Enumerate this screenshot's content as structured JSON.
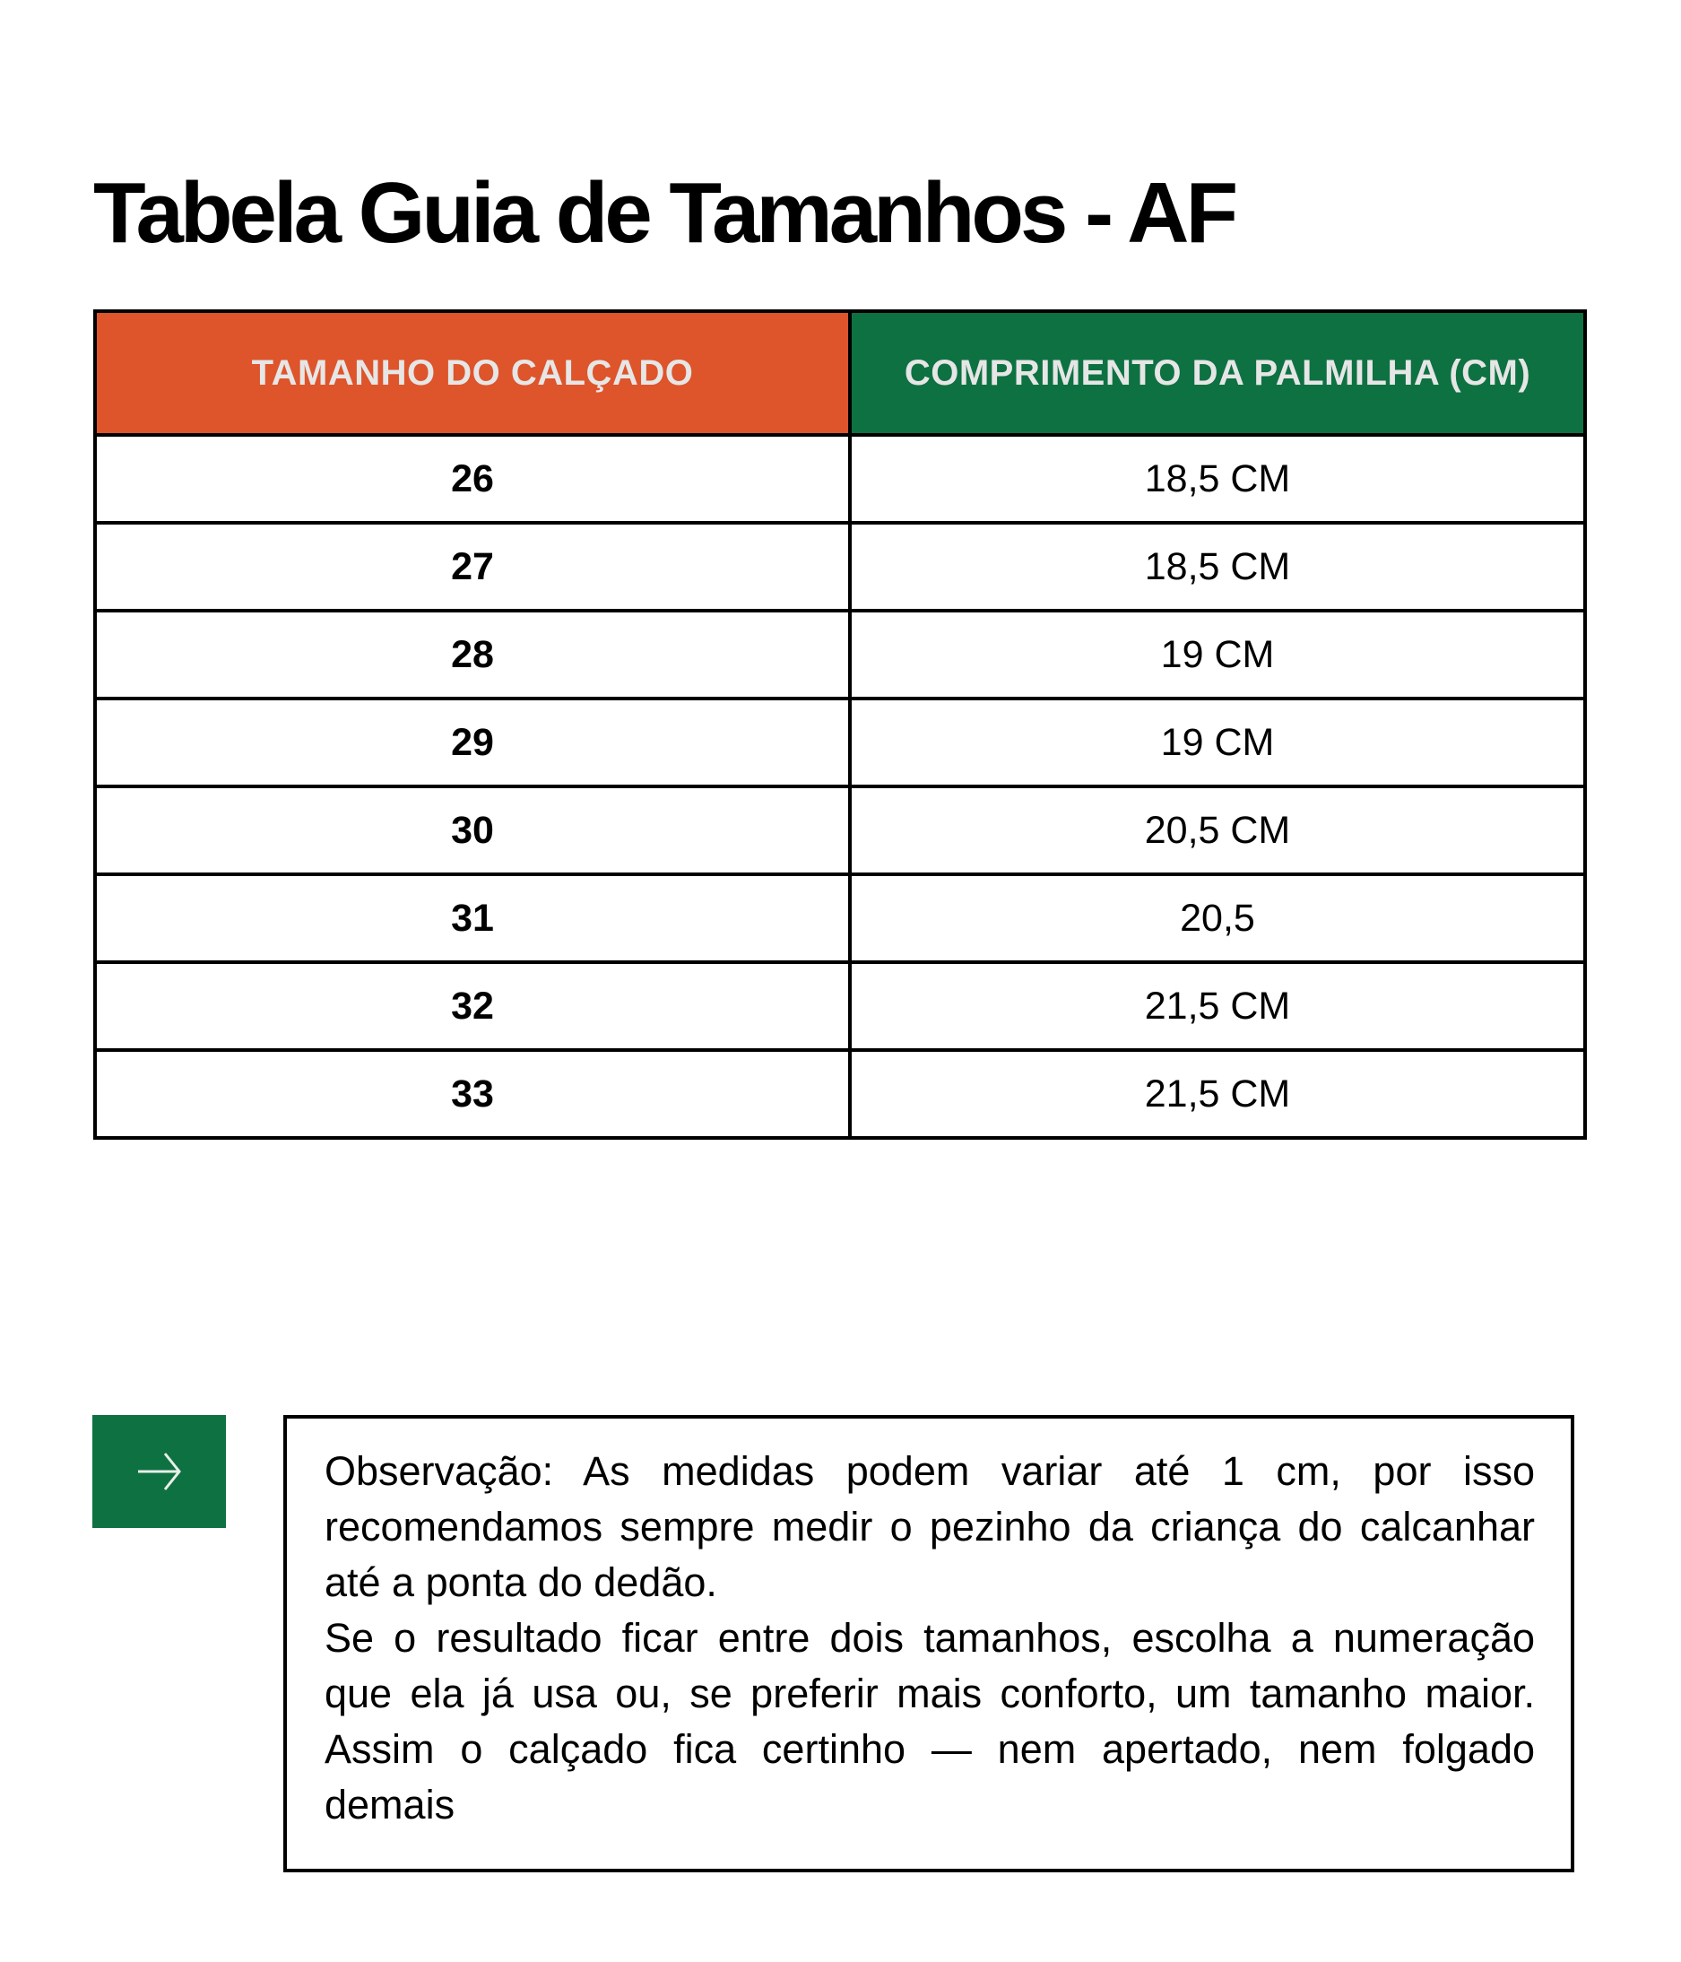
{
  "title": "Tabela Guia de Tamanhos - AF",
  "colors": {
    "header_left": "#de542b",
    "header_right": "#0e7142",
    "arrow_box": "#0e7142"
  },
  "table": {
    "headers": [
      "TAMANHO DO CALÇADO",
      "COMPRIMENTO DA PALMILHA (CM)"
    ],
    "rows": [
      [
        "26",
        "18,5 CM"
      ],
      [
        "27",
        "18,5 CM"
      ],
      [
        "28",
        "19 CM"
      ],
      [
        "29",
        "19 CM"
      ],
      [
        "30",
        "20,5 CM"
      ],
      [
        "31",
        "20,5"
      ],
      [
        "32",
        "21,5 CM"
      ],
      [
        "33",
        "21,5 CM"
      ]
    ]
  },
  "note": {
    "icon": "arrow-right-icon",
    "paragraphs": [
      "Observação: As medidas podem variar até 1 cm, por isso recomendamos sempre medir o pezinho da criança do calcanhar até a ponta do dedão.",
      "Se o resultado ficar entre dois tamanhos, escolha a numeração que ela já usa ou, se preferir mais conforto, um tamanho maior. Assim o calçado fica certinho — nem apertado, nem folgado demais"
    ]
  }
}
